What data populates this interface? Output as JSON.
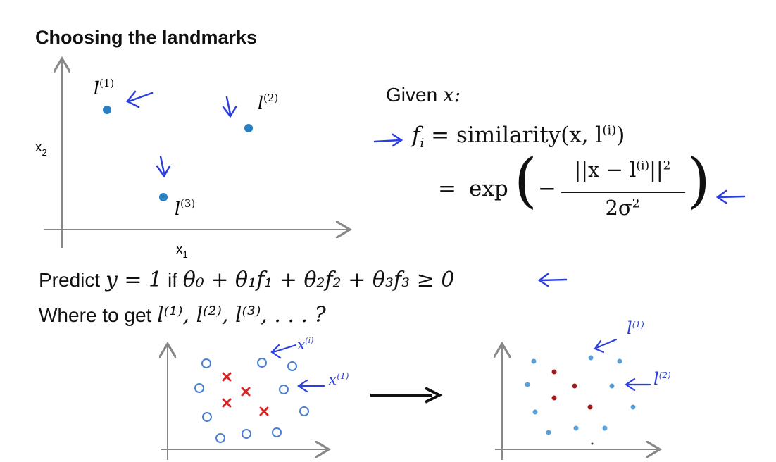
{
  "slide": {
    "title": "Choosing the landmarks"
  },
  "top_plot": {
    "x_axis_label": "x",
    "x_axis_sub": "1",
    "y_axis_label": "x",
    "y_axis_sub": "2",
    "landmarks": [
      {
        "label": "l",
        "sup": "(1)"
      },
      {
        "label": "l",
        "sup": "(2)"
      },
      {
        "label": "l",
        "sup": "(3)"
      }
    ],
    "point_color": "#2a7fc1",
    "annotation_color": "#2b3fe0"
  },
  "given": {
    "label": "Given",
    "var": "x:",
    "f_lhs": "f",
    "f_sub": "i",
    "eq": "=",
    "similarity_text": "similarity(x, l",
    "similarity_sup": "(i)",
    "close_paren": ")",
    "exp_text": "exp",
    "numerator_text": "||x − l",
    "numerator_sup": "(i)",
    "numerator_tail": "||",
    "numerator_sq": "2",
    "denominator_text": "2σ",
    "denominator_sup": "2",
    "minus": "−"
  },
  "predict": {
    "label": "Predict",
    "math_y": "y = 1",
    "if_word": "if",
    "math_cond": "θ₀ + θ₁f₁ + θ₂f₂ + θ₃f₃ ≥ 0"
  },
  "where": {
    "label": "Where to get",
    "math": "l⁽¹⁾, l⁽²⁾, l⁽³⁾, . . . ?"
  },
  "bottom_left_plot": {
    "annotation_top": "x",
    "annotation_top_sup": "(i)",
    "annotation_mid": "x",
    "annotation_mid_sup": "(1)",
    "circle_color": "#4a7fd1",
    "cross_color": "#d92222"
  },
  "bottom_right_plot": {
    "annotation_top": "l",
    "annotation_top_sup": "(1)",
    "annotation_mid": "l",
    "annotation_mid_sup": "(2)",
    "blue_dot_color": "#5aa0d8",
    "red_dot_color": "#a01d1d"
  }
}
